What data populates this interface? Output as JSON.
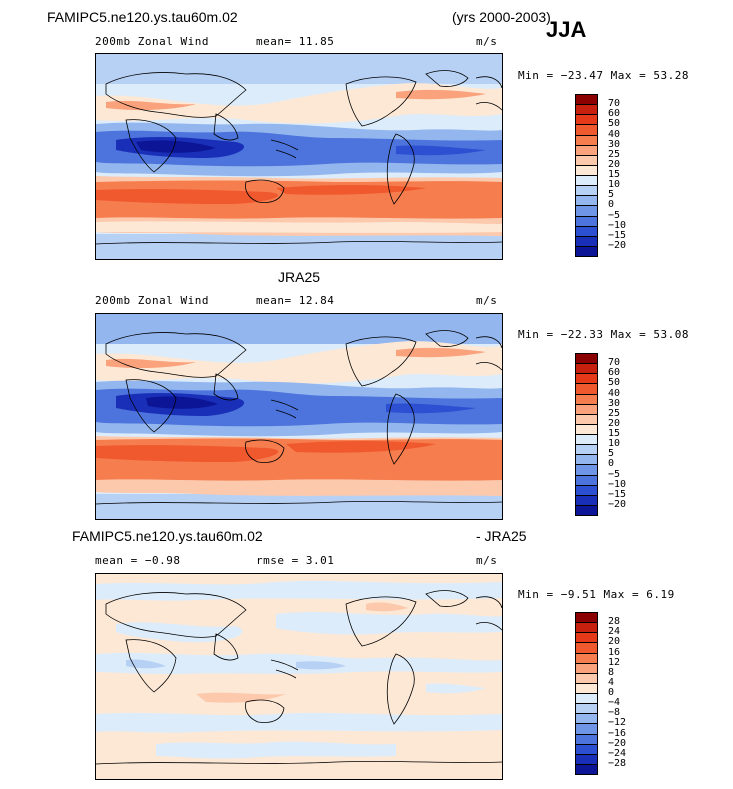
{
  "header": {
    "case_name": "FAMIPC5.ne120.ys.tau60m.02",
    "years": "(yrs 2000-2003)",
    "season": "JJA"
  },
  "panels": [
    {
      "id": "model",
      "title_above": "",
      "field_label": "200mb Zonal Wind",
      "stat": "mean=  11.85",
      "units": "m/s",
      "minmax": "Min = −23.47 Max =  53.28",
      "colorbar_labels": [
        "70",
        "60",
        "50",
        "40",
        "30",
        "25",
        "20",
        "15",
        "10",
        "5",
        "0",
        "−5",
        "−10",
        "−15",
        "−20"
      ],
      "colorbar_colors": [
        "#8b0000",
        "#c8200e",
        "#e6391a",
        "#f0582e",
        "#f57d4e",
        "#f9a27c",
        "#fcc9ad",
        "#fde8d6",
        "#dcecfa",
        "#b7d1f5",
        "#93b6ef",
        "#6f96e6",
        "#4c74dc",
        "#2d4fd1",
        "#1a2fb8",
        "#0b1596"
      ]
    },
    {
      "id": "obs",
      "title_above": "JRA25",
      "field_label": "200mb Zonal Wind",
      "stat": "mean=  12.84",
      "units": "m/s",
      "minmax": "Min = −22.33 Max =  53.08",
      "colorbar_labels": [
        "70",
        "60",
        "50",
        "40",
        "30",
        "25",
        "20",
        "15",
        "10",
        "5",
        "0",
        "−5",
        "−10",
        "−15",
        "−20"
      ],
      "colorbar_colors": [
        "#8b0000",
        "#c8200e",
        "#e6391a",
        "#f0582e",
        "#f57d4e",
        "#f9a27c",
        "#fcc9ad",
        "#fde8d6",
        "#dcecfa",
        "#b7d1f5",
        "#93b6ef",
        "#6f96e6",
        "#4c74dc",
        "#2d4fd1",
        "#1a2fb8",
        "#0b1596"
      ]
    },
    {
      "id": "diff",
      "title_left": "FAMIPC5.ne120.ys.tau60m.02",
      "title_right": "- JRA25",
      "field_label": "mean =   −0.98",
      "stat": "rmse =   3.01",
      "units": "m/s",
      "minmax": "Min =  −9.51 Max =   6.19",
      "colorbar_labels": [
        "28",
        "24",
        "20",
        "16",
        "12",
        "8",
        "4",
        "0",
        "−4",
        "−8",
        "−12",
        "−16",
        "−20",
        "−24",
        "−28"
      ],
      "colorbar_colors": [
        "#8b0000",
        "#c8200e",
        "#e6391a",
        "#f0582e",
        "#f57d4e",
        "#f9a27c",
        "#fcc9ad",
        "#fde8d6",
        "#dcecfa",
        "#b7d1f5",
        "#93b6ef",
        "#6f96e6",
        "#4c74dc",
        "#2d4fd1",
        "#1a2fb8",
        "#0b1596"
      ]
    }
  ],
  "chart_data": [
    {
      "type": "heatmap",
      "title": "200mb Zonal Wind",
      "subtitle": "FAMIPC5.ne120.ys.tau60m.02 (yrs 2000-2003) JJA",
      "units": "m/s",
      "mean": 11.85,
      "min": -23.47,
      "max": 53.28,
      "contour_levels": [
        -20,
        -15,
        -10,
        -5,
        0,
        5,
        10,
        15,
        20,
        25,
        30,
        40,
        50,
        60,
        70
      ]
    },
    {
      "type": "heatmap",
      "title": "JRA25",
      "subtitle": "200mb Zonal Wind",
      "units": "m/s",
      "mean": 12.84,
      "min": -22.33,
      "max": 53.08,
      "contour_levels": [
        -20,
        -15,
        -10,
        -5,
        0,
        5,
        10,
        15,
        20,
        25,
        30,
        40,
        50,
        60,
        70
      ]
    },
    {
      "type": "heatmap",
      "title": "FAMIPC5.ne120.ys.tau60m.02 - JRA25",
      "units": "m/s",
      "mean": -0.98,
      "rmse": 3.01,
      "min": -9.51,
      "max": 6.19,
      "contour_levels": [
        -28,
        -24,
        -20,
        -16,
        -12,
        -8,
        -4,
        0,
        4,
        8,
        12,
        16,
        20,
        24,
        28
      ]
    }
  ]
}
